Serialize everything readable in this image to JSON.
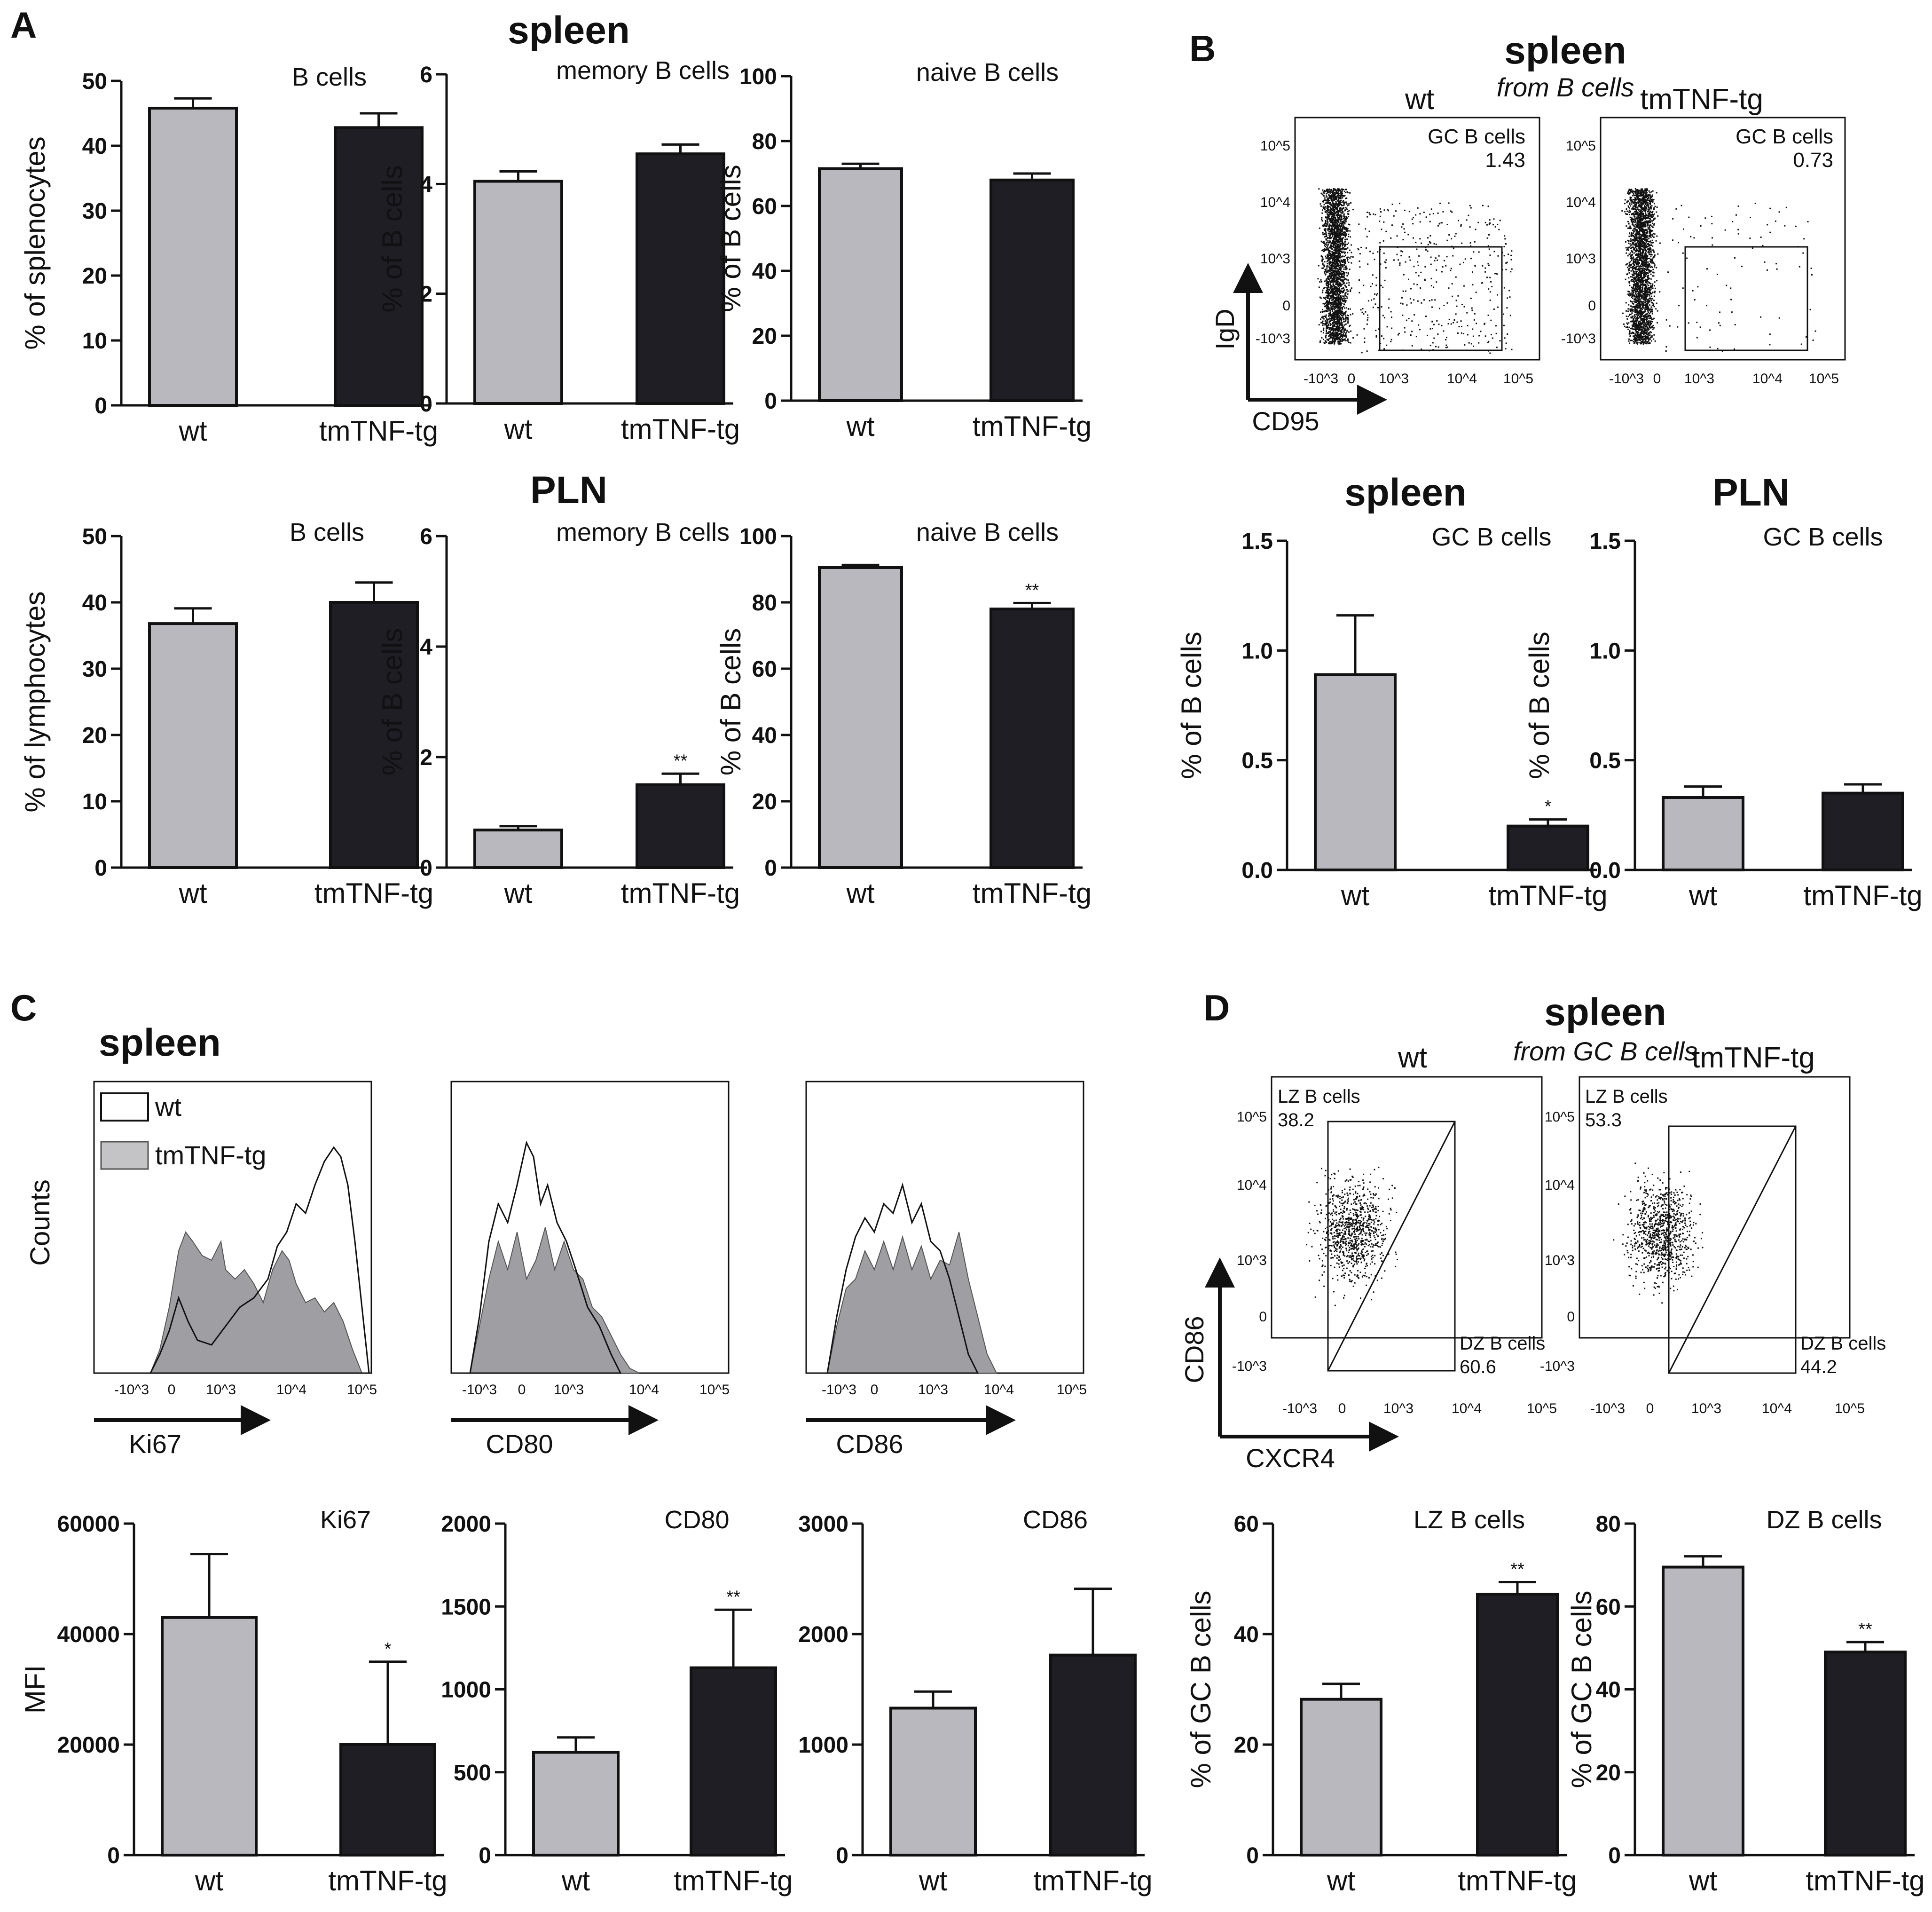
{
  "panel_letters": {
    "A": "A",
    "B": "B",
    "C": "C",
    "D": "D"
  },
  "section_titles": {
    "A_spleen": "spleen",
    "A_pln": "PLN",
    "B_top": "spleen",
    "B_top_sub": "from B cells",
    "B_spleen": "spleen",
    "B_pln": "PLN",
    "C_top": "spleen",
    "D_top": "spleen",
    "D_top_sub": "from GC B cells"
  },
  "colors": {
    "wt": "#b9b8bf",
    "tmTNF-tg": "#1e1e24",
    "axis": "#111111"
  },
  "chart_data": [
    {
      "id": "A1",
      "type": "bar",
      "title": "B cells",
      "ylabel": "% of splenocytes",
      "categories": [
        "wt",
        "tmTNF-tg"
      ],
      "values": [
        45.8,
        42.8
      ],
      "errors": [
        1.5,
        2.2
      ],
      "sig": [
        "",
        ""
      ],
      "ylim": [
        0,
        50
      ],
      "yticks": [
        0,
        10,
        20,
        30,
        40,
        50
      ],
      "ytick_labels": [
        "0",
        "10",
        "20",
        "30",
        "40",
        "50"
      ]
    },
    {
      "id": "A2",
      "type": "bar",
      "title": "memory B cells",
      "ylabel": "% of B cells",
      "categories": [
        "wt",
        "tmTNF-tg"
      ],
      "values": [
        4.05,
        4.55
      ],
      "errors": [
        0.18,
        0.17
      ],
      "sig": [
        "",
        ""
      ],
      "ylim": [
        0,
        6
      ],
      "yticks": [
        0,
        2,
        4,
        6
      ],
      "ytick_labels": [
        "0",
        "2",
        "4",
        "6"
      ]
    },
    {
      "id": "A3",
      "type": "bar",
      "title": "naive B cells",
      "ylabel": "% of B cells",
      "categories": [
        "wt",
        "tmTNF-tg"
      ],
      "values": [
        71.5,
        68.0
      ],
      "errors": [
        1.5,
        2.0
      ],
      "sig": [
        "",
        ""
      ],
      "ylim": [
        0,
        100
      ],
      "yticks": [
        0,
        20,
        40,
        60,
        80,
        100
      ],
      "ytick_labels": [
        "0",
        "20",
        "40",
        "60",
        "80",
        "100"
      ]
    },
    {
      "id": "A4",
      "type": "bar",
      "title": "B cells",
      "ylabel": "% of lymphocytes",
      "categories": [
        "wt",
        "tmTNF-tg"
      ],
      "values": [
        36.8,
        40.0
      ],
      "errors": [
        2.3,
        3.0
      ],
      "sig": [
        "",
        ""
      ],
      "ylim": [
        0,
        50
      ],
      "yticks": [
        0,
        10,
        20,
        30,
        40,
        50
      ],
      "ytick_labels": [
        "0",
        "10",
        "20",
        "30",
        "40",
        "50"
      ]
    },
    {
      "id": "A5",
      "type": "bar",
      "title": "memory B cells",
      "ylabel": "% of B cells",
      "categories": [
        "wt",
        "tmTNF-tg"
      ],
      "values": [
        0.68,
        1.5
      ],
      "errors": [
        0.07,
        0.2
      ],
      "sig": [
        "",
        "**"
      ],
      "ylim": [
        0,
        6
      ],
      "yticks": [
        0,
        2,
        4,
        6
      ],
      "ytick_labels": [
        "0",
        "2",
        "4",
        "6"
      ]
    },
    {
      "id": "A6",
      "type": "bar",
      "title": "naive B cells",
      "ylabel": "% of B cells",
      "categories": [
        "wt",
        "tmTNF-tg"
      ],
      "values": [
        90.5,
        78.0
      ],
      "errors": [
        0.8,
        1.8
      ],
      "sig": [
        "",
        "**"
      ],
      "ylim": [
        0,
        100
      ],
      "yticks": [
        0,
        20,
        40,
        60,
        80,
        100
      ],
      "ytick_labels": [
        "0",
        "20",
        "40",
        "60",
        "80",
        "100"
      ]
    },
    {
      "id": "B1",
      "type": "bar",
      "title": "GC B cells",
      "ylabel": "% of B cells",
      "categories": [
        "wt",
        "tmTNF-tg"
      ],
      "values": [
        0.89,
        0.2
      ],
      "errors": [
        0.27,
        0.03
      ],
      "sig": [
        "",
        "*"
      ],
      "ylim": [
        0,
        1.5
      ],
      "yticks": [
        0,
        0.5,
        1.0,
        1.5
      ],
      "ytick_labels": [
        "0.0",
        "0.5",
        "1.0",
        "1.5"
      ]
    },
    {
      "id": "B2",
      "type": "bar",
      "title": "GC B cells",
      "ylabel": "% of B cells",
      "categories": [
        "wt",
        "tmTNF-tg"
      ],
      "values": [
        0.33,
        0.35
      ],
      "errors": [
        0.05,
        0.04
      ],
      "sig": [
        "",
        ""
      ],
      "ylim": [
        0,
        1.5
      ],
      "yticks": [
        0,
        0.5,
        1.0,
        1.5
      ],
      "ytick_labels": [
        "0.0",
        "0.5",
        "1.0",
        "1.5"
      ]
    },
    {
      "id": "C1",
      "type": "bar",
      "title": "Ki67",
      "ylabel": "MFI",
      "categories": [
        "wt",
        "tmTNF-tg"
      ],
      "values": [
        43000,
        20000
      ],
      "errors": [
        11500,
        15000
      ],
      "sig": [
        "",
        "*"
      ],
      "ylim": [
        0,
        60000
      ],
      "yticks": [
        0,
        20000,
        40000,
        60000
      ],
      "ytick_labels": [
        "0",
        "20000",
        "40000",
        "60000"
      ]
    },
    {
      "id": "C2",
      "type": "bar",
      "title": "CD80",
      "ylabel": "",
      "categories": [
        "wt",
        "tmTNF-tg"
      ],
      "values": [
        620,
        1130
      ],
      "errors": [
        90,
        350
      ],
      "sig": [
        "",
        "**"
      ],
      "ylim": [
        0,
        2000
      ],
      "yticks": [
        0,
        500,
        1000,
        1500,
        2000
      ],
      "ytick_labels": [
        "0",
        "500",
        "1000",
        "1500",
        "2000"
      ]
    },
    {
      "id": "C3",
      "type": "bar",
      "title": "CD86",
      "ylabel": "",
      "categories": [
        "wt",
        "tmTNF-tg"
      ],
      "values": [
        1330,
        1810
      ],
      "errors": [
        150,
        600
      ],
      "sig": [
        "",
        ""
      ],
      "ylim": [
        0,
        3000
      ],
      "yticks": [
        0,
        1000,
        2000,
        3000
      ],
      "ytick_labels": [
        "0",
        "1000",
        "2000",
        "3000"
      ]
    },
    {
      "id": "D1",
      "type": "bar",
      "title": "LZ B cells",
      "ylabel": "% of GC B cells",
      "categories": [
        "wt",
        "tmTNF-tg"
      ],
      "values": [
        28.2,
        47.2
      ],
      "errors": [
        2.8,
        2.2
      ],
      "sig": [
        "",
        "**"
      ],
      "ylim": [
        0,
        60
      ],
      "yticks": [
        0,
        20,
        40,
        60
      ],
      "ytick_labels": [
        "0",
        "20",
        "40",
        "60"
      ]
    },
    {
      "id": "D2",
      "type": "bar",
      "title": "DZ B cells",
      "ylabel": "% of GC B cells",
      "categories": [
        "wt",
        "tmTNF-tg"
      ],
      "values": [
        69.5,
        49.0
      ],
      "errors": [
        2.6,
        2.4
      ],
      "sig": [
        "",
        "**"
      ],
      "ylim": [
        0,
        80
      ],
      "yticks": [
        0,
        20,
        40,
        60,
        80
      ],
      "ytick_labels": [
        "0",
        "20",
        "40",
        "60",
        "80"
      ]
    }
  ],
  "facs_B": {
    "samples": [
      {
        "label": "wt",
        "gate_name": "GC B cells",
        "gate_value": "1.43"
      },
      {
        "label": "tmTNF-tg",
        "gate_name": "GC B cells",
        "gate_value": "0.73"
      }
    ],
    "ylabel": "IgD",
    "xlabel": "CD95",
    "yticks": [
      "10^5",
      "10^4",
      "10^3",
      "0",
      "-10^3"
    ],
    "xticks": [
      "-10^3",
      "0",
      "10^3",
      "10^4",
      "10^5"
    ]
  },
  "histograms_C": {
    "ylabel": "Counts",
    "legend": [
      {
        "label": "wt"
      },
      {
        "label": "tmTNF-tg"
      }
    ],
    "panels": [
      {
        "marker": "Ki67"
      },
      {
        "marker": "CD80"
      },
      {
        "marker": "CD86"
      }
    ],
    "xticks": [
      "-10^3",
      "0",
      "10^3",
      "10^4",
      "10^5"
    ]
  },
  "facs_D": {
    "samples": [
      {
        "label": "wt",
        "lz_name": "LZ B cells",
        "lz_value": "38.2",
        "dz_name": "DZ B cells",
        "dz_value": "60.6"
      },
      {
        "label": "tmTNF-tg",
        "lz_name": "LZ B cells",
        "lz_value": "53.3",
        "dz_name": "DZ B cells",
        "dz_value": "44.2"
      }
    ],
    "ylabel": "CD86",
    "xlabel": "CXCR4",
    "yticks": [
      "10^5",
      "10^4",
      "10^3",
      "0",
      "-10^3"
    ],
    "xticks": [
      "-10^3",
      "0",
      "10^3",
      "10^4",
      "10^5"
    ]
  }
}
